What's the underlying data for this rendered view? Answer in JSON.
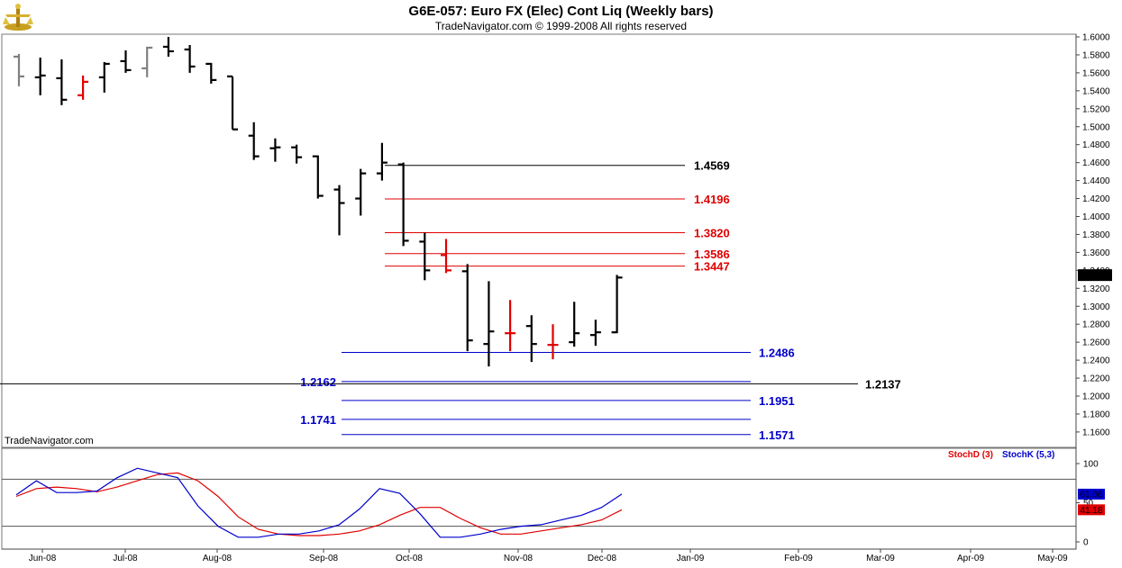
{
  "header": {
    "title": "G6E-057:  Euro FX (Elec) Cont Liq  (Weekly bars)",
    "copyright": "TradeNavigator.com © 1999-2008 All rights reserved",
    "watermark": "TradeNavigator.com"
  },
  "chart_data": [
    {
      "type": "ohlc",
      "title": "G6E-057:  Euro FX (Elec) Cont Liq  (Weekly bars)",
      "xlabel": "",
      "ylabel": "",
      "ylim": [
        1.15,
        1.605
      ],
      "grid": false,
      "y_ticks": [
        "1.6000",
        "1.5800",
        "1.5600",
        "1.5400",
        "1.5200",
        "1.5000",
        "1.4800",
        "1.4600",
        "1.4400",
        "1.4200",
        "1.4000",
        "1.3800",
        "1.3600",
        "1.3400",
        "1.3200",
        "1.3000",
        "1.2800",
        "1.2600",
        "1.2400",
        "1.2200",
        "1.2000",
        "1.1800",
        "1.1600"
      ],
      "y_tick_values": [
        1.6,
        1.58,
        1.56,
        1.54,
        1.52,
        1.5,
        1.48,
        1.46,
        1.44,
        1.42,
        1.4,
        1.38,
        1.36,
        1.34,
        1.32,
        1.3,
        1.28,
        1.26,
        1.24,
        1.22,
        1.2,
        1.18,
        1.16
      ],
      "x_tick_labels": [
        "Jun-08",
        "Jul-08",
        "Aug-08",
        "Sep-08",
        "Oct-08",
        "Nov-08",
        "Dec-08",
        "Jan-09",
        "Feb-09",
        "Mar-09",
        "Apr-09",
        "May-09"
      ],
      "last_price": "1.3342",
      "bars": [
        {
          "o": 1.578,
          "h": 1.581,
          "l": 1.545,
          "c": 1.556,
          "color": "gray"
        },
        {
          "o": 1.555,
          "h": 1.577,
          "l": 1.535,
          "c": 1.557,
          "color": "black"
        },
        {
          "o": 1.554,
          "h": 1.575,
          "l": 1.524,
          "c": 1.53,
          "color": "black"
        },
        {
          "o": 1.535,
          "h": 1.557,
          "l": 1.53,
          "c": 1.55,
          "color": "red"
        },
        {
          "o": 1.555,
          "h": 1.572,
          "l": 1.538,
          "c": 1.57,
          "color": "black"
        },
        {
          "o": 1.573,
          "h": 1.585,
          "l": 1.56,
          "c": 1.563,
          "color": "black"
        },
        {
          "o": 1.565,
          "h": 1.589,
          "l": 1.555,
          "c": 1.588,
          "color": "gray"
        },
        {
          "o": 1.589,
          "h": 1.6,
          "l": 1.578,
          "c": 1.584,
          "color": "black"
        },
        {
          "o": 1.586,
          "h": 1.591,
          "l": 1.56,
          "c": 1.567,
          "color": "black"
        },
        {
          "o": 1.57,
          "h": 1.571,
          "l": 1.548,
          "c": 1.552,
          "color": "black"
        },
        {
          "o": 1.556,
          "h": 1.556,
          "l": 1.497,
          "c": 1.497,
          "color": "black"
        },
        {
          "o": 1.49,
          "h": 1.505,
          "l": 1.463,
          "c": 1.467,
          "color": "black"
        },
        {
          "o": 1.476,
          "h": 1.487,
          "l": 1.461,
          "c": 1.477,
          "color": "black"
        },
        {
          "o": 1.477,
          "h": 1.48,
          "l": 1.459,
          "c": 1.466,
          "color": "black"
        },
        {
          "o": 1.467,
          "h": 1.468,
          "l": 1.42,
          "c": 1.423,
          "color": "black"
        },
        {
          "o": 1.43,
          "h": 1.435,
          "l": 1.379,
          "c": 1.415,
          "color": "black"
        },
        {
          "o": 1.42,
          "h": 1.453,
          "l": 1.401,
          "c": 1.448,
          "color": "black"
        },
        {
          "o": 1.448,
          "h": 1.482,
          "l": 1.44,
          "c": 1.46,
          "color": "black"
        },
        {
          "o": 1.458,
          "h": 1.46,
          "l": 1.367,
          "c": 1.373,
          "color": "black"
        },
        {
          "o": 1.372,
          "h": 1.382,
          "l": 1.329,
          "c": 1.34,
          "color": "black"
        },
        {
          "o": 1.357,
          "h": 1.375,
          "l": 1.337,
          "c": 1.34,
          "color": "red"
        },
        {
          "o": 1.339,
          "h": 1.347,
          "l": 1.25,
          "c": 1.262,
          "color": "black"
        },
        {
          "o": 1.258,
          "h": 1.328,
          "l": 1.233,
          "c": 1.272,
          "color": "black"
        },
        {
          "o": 1.27,
          "h": 1.307,
          "l": 1.25,
          "c": 1.27,
          "color": "red"
        },
        {
          "o": 1.278,
          "h": 1.29,
          "l": 1.238,
          "c": 1.258,
          "color": "black"
        },
        {
          "o": 1.257,
          "h": 1.28,
          "l": 1.241,
          "c": 1.257,
          "color": "red"
        },
        {
          "o": 1.26,
          "h": 1.305,
          "l": 1.255,
          "c": 1.27,
          "color": "black"
        },
        {
          "o": 1.268,
          "h": 1.285,
          "l": 1.256,
          "c": 1.271,
          "color": "black"
        },
        {
          "o": 1.271,
          "h": 1.335,
          "l": 1.27,
          "c": 1.332,
          "color": "black"
        }
      ],
      "levels": [
        {
          "value": 1.4569,
          "label": "1.4569",
          "color": "#000000",
          "label_side": "right"
        },
        {
          "value": 1.4196,
          "label": "1.4196",
          "color": "#e00000",
          "label_side": "right"
        },
        {
          "value": 1.382,
          "label": "1.3820",
          "color": "#e00000",
          "label_side": "right"
        },
        {
          "value": 1.3586,
          "label": "1.3586",
          "color": "#e00000",
          "label_side": "right"
        },
        {
          "value": 1.3447,
          "label": "1.3447",
          "color": "#e00000",
          "label_side": "right"
        },
        {
          "value": 1.2486,
          "label": "1.2486",
          "color": "#0000cc",
          "label_side": "right"
        },
        {
          "value": 1.2162,
          "label": "1.2162",
          "color": "#0000cc",
          "label_side": "left"
        },
        {
          "value": 1.2137,
          "label": "1.2137",
          "color": "#000000",
          "label_side": "right"
        },
        {
          "value": 1.1951,
          "label": "1.1951",
          "color": "#0000cc",
          "label_side": "right"
        },
        {
          "value": 1.1741,
          "label": "1.1741",
          "color": "#0000cc",
          "label_side": "left"
        },
        {
          "value": 1.1571,
          "label": "1.1571",
          "color": "#0000cc",
          "label_side": "right"
        }
      ]
    },
    {
      "type": "line",
      "title": "",
      "xlabel": "",
      "ylabel": "",
      "ylim": [
        0,
        100
      ],
      "y_ticks": [
        "100",
        "50",
        "0"
      ],
      "y_tick_values": [
        100,
        50,
        0
      ],
      "reference_lines": [
        80,
        20
      ],
      "series": [
        {
          "name": "StochD (3)",
          "color": "#e00000",
          "last_label": "41.18",
          "values": [
            58,
            68,
            70,
            68,
            64,
            70,
            78,
            86,
            88,
            78,
            58,
            32,
            16,
            10,
            8,
            8,
            10,
            14,
            22,
            34,
            44,
            44,
            30,
            18,
            10,
            10,
            14,
            18,
            22,
            28,
            41
          ]
        },
        {
          "name": "StochK (5,3)",
          "color": "#0000cc",
          "last_label": "61.06",
          "values": [
            60,
            78,
            63,
            63,
            65,
            82,
            94,
            88,
            82,
            46,
            20,
            6,
            6,
            10,
            10,
            14,
            22,
            42,
            68,
            62,
            36,
            6,
            6,
            10,
            16,
            20,
            22,
            28,
            34,
            44,
            61
          ]
        }
      ]
    }
  ]
}
